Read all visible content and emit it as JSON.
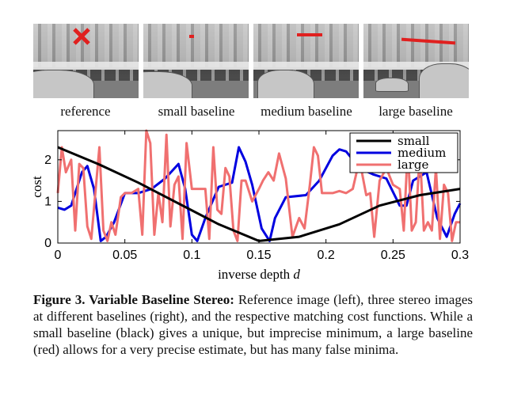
{
  "images": [
    {
      "label": "reference",
      "marker": "x"
    },
    {
      "label": "small baseline",
      "marker": "small-line"
    },
    {
      "label": "medium baseline",
      "marker": "medium-line"
    },
    {
      "label": "large baseline",
      "marker": "large-line"
    }
  ],
  "marker_color": "#e0201f",
  "chart_data": {
    "type": "line",
    "xlabel": "inverse depth d",
    "ylabel": "cost",
    "xlim": [
      0,
      0.3
    ],
    "ylim": [
      0,
      2.7
    ],
    "xticks": [
      "0",
      "0.05",
      "0.1",
      "0.15",
      "0.2",
      "0.25",
      "0.3"
    ],
    "yticks": [
      "0",
      "1",
      "2"
    ],
    "legend_position": "top-right",
    "series": [
      {
        "name": "small",
        "color": "#000000",
        "x": [
          0,
          0.03,
          0.06,
          0.09,
          0.12,
          0.15,
          0.18,
          0.21,
          0.24,
          0.27,
          0.3
        ],
        "y": [
          2.3,
          1.9,
          1.45,
          0.95,
          0.45,
          0.05,
          0.15,
          0.45,
          0.9,
          1.15,
          1.3
        ]
      },
      {
        "name": "medium",
        "color": "#0000e0",
        "x": [
          0,
          0.005,
          0.01,
          0.018,
          0.022,
          0.027,
          0.032,
          0.036,
          0.042,
          0.05,
          0.06,
          0.07,
          0.08,
          0.09,
          0.095,
          0.1,
          0.104,
          0.11,
          0.12,
          0.13,
          0.135,
          0.14,
          0.145,
          0.152,
          0.158,
          0.162,
          0.17,
          0.185,
          0.195,
          0.205,
          0.21,
          0.215,
          0.225,
          0.235,
          0.245,
          0.255,
          0.26,
          0.265,
          0.275,
          0.283,
          0.29,
          0.296,
          0.3
        ],
        "y": [
          0.85,
          0.8,
          0.9,
          1.7,
          1.85,
          1.3,
          0.05,
          0.15,
          0.5,
          1.2,
          1.2,
          1.3,
          1.55,
          1.9,
          1.3,
          0.2,
          0.05,
          0.6,
          1.35,
          1.45,
          2.3,
          1.95,
          1.4,
          0.35,
          0.05,
          0.6,
          1.1,
          1.15,
          1.5,
          2.1,
          2.25,
          2.2,
          1.8,
          1.65,
          1.55,
          0.9,
          0.9,
          1.5,
          1.7,
          0.6,
          0.15,
          0.7,
          0.95
        ]
      },
      {
        "name": "large",
        "color": "#f07070",
        "x": [
          0,
          0.003,
          0.006,
          0.01,
          0.013,
          0.016,
          0.019,
          0.022,
          0.025,
          0.028,
          0.031,
          0.034,
          0.037,
          0.04,
          0.043,
          0.047,
          0.05,
          0.055,
          0.06,
          0.063,
          0.066,
          0.069,
          0.072,
          0.075,
          0.078,
          0.081,
          0.084,
          0.087,
          0.09,
          0.093,
          0.096,
          0.1,
          0.105,
          0.11,
          0.113,
          0.116,
          0.119,
          0.122,
          0.125,
          0.128,
          0.131,
          0.134,
          0.137,
          0.14,
          0.145,
          0.15,
          0.153,
          0.157,
          0.161,
          0.165,
          0.17,
          0.175,
          0.18,
          0.184,
          0.188,
          0.191,
          0.194,
          0.197,
          0.2,
          0.205,
          0.21,
          0.215,
          0.22,
          0.225,
          0.23,
          0.233,
          0.236,
          0.24,
          0.245,
          0.25,
          0.255,
          0.258,
          0.261,
          0.264,
          0.267,
          0.27,
          0.273,
          0.276,
          0.279,
          0.282,
          0.285,
          0.288,
          0.291,
          0.294,
          0.297,
          0.3
        ],
        "y": [
          1.2,
          2.3,
          1.7,
          2.0,
          0.3,
          1.9,
          1.8,
          0.4,
          0.1,
          1.2,
          2.3,
          0.3,
          0.05,
          0.5,
          0.2,
          1.1,
          1.2,
          1.2,
          1.3,
          0.2,
          2.7,
          2.4,
          0.2,
          1.2,
          0.5,
          2.6,
          0.4,
          1.4,
          1.6,
          0.1,
          2.4,
          1.3,
          1.3,
          1.3,
          0.1,
          2.3,
          0.8,
          0.7,
          1.8,
          1.6,
          0.3,
          0.05,
          1.5,
          1.5,
          1.0,
          1.3,
          1.5,
          1.7,
          1.5,
          2.15,
          1.55,
          0.15,
          0.6,
          0.35,
          1.4,
          2.3,
          2.1,
          1.2,
          1.2,
          1.2,
          1.25,
          1.2,
          1.3,
          2.0,
          1.15,
          1.2,
          0.15,
          1.5,
          1.8,
          1.4,
          1.3,
          0.3,
          2.3,
          0.3,
          0.5,
          2.2,
          0.3,
          0.5,
          0.3,
          1.8,
          0.1,
          1.4,
          1.2,
          0.05,
          0.5,
          0.5
        ]
      }
    ]
  },
  "caption": {
    "bold": "Figure 3. Variable Baseline Stereo:",
    "text": " Reference image (left), three stereo images at different baselines (right), and the respective matching cost functions.  While a small baseline (black) gives a unique, but imprecise minimum, a large baseline (red) allows for a very precise estimate, but has many false minima."
  }
}
